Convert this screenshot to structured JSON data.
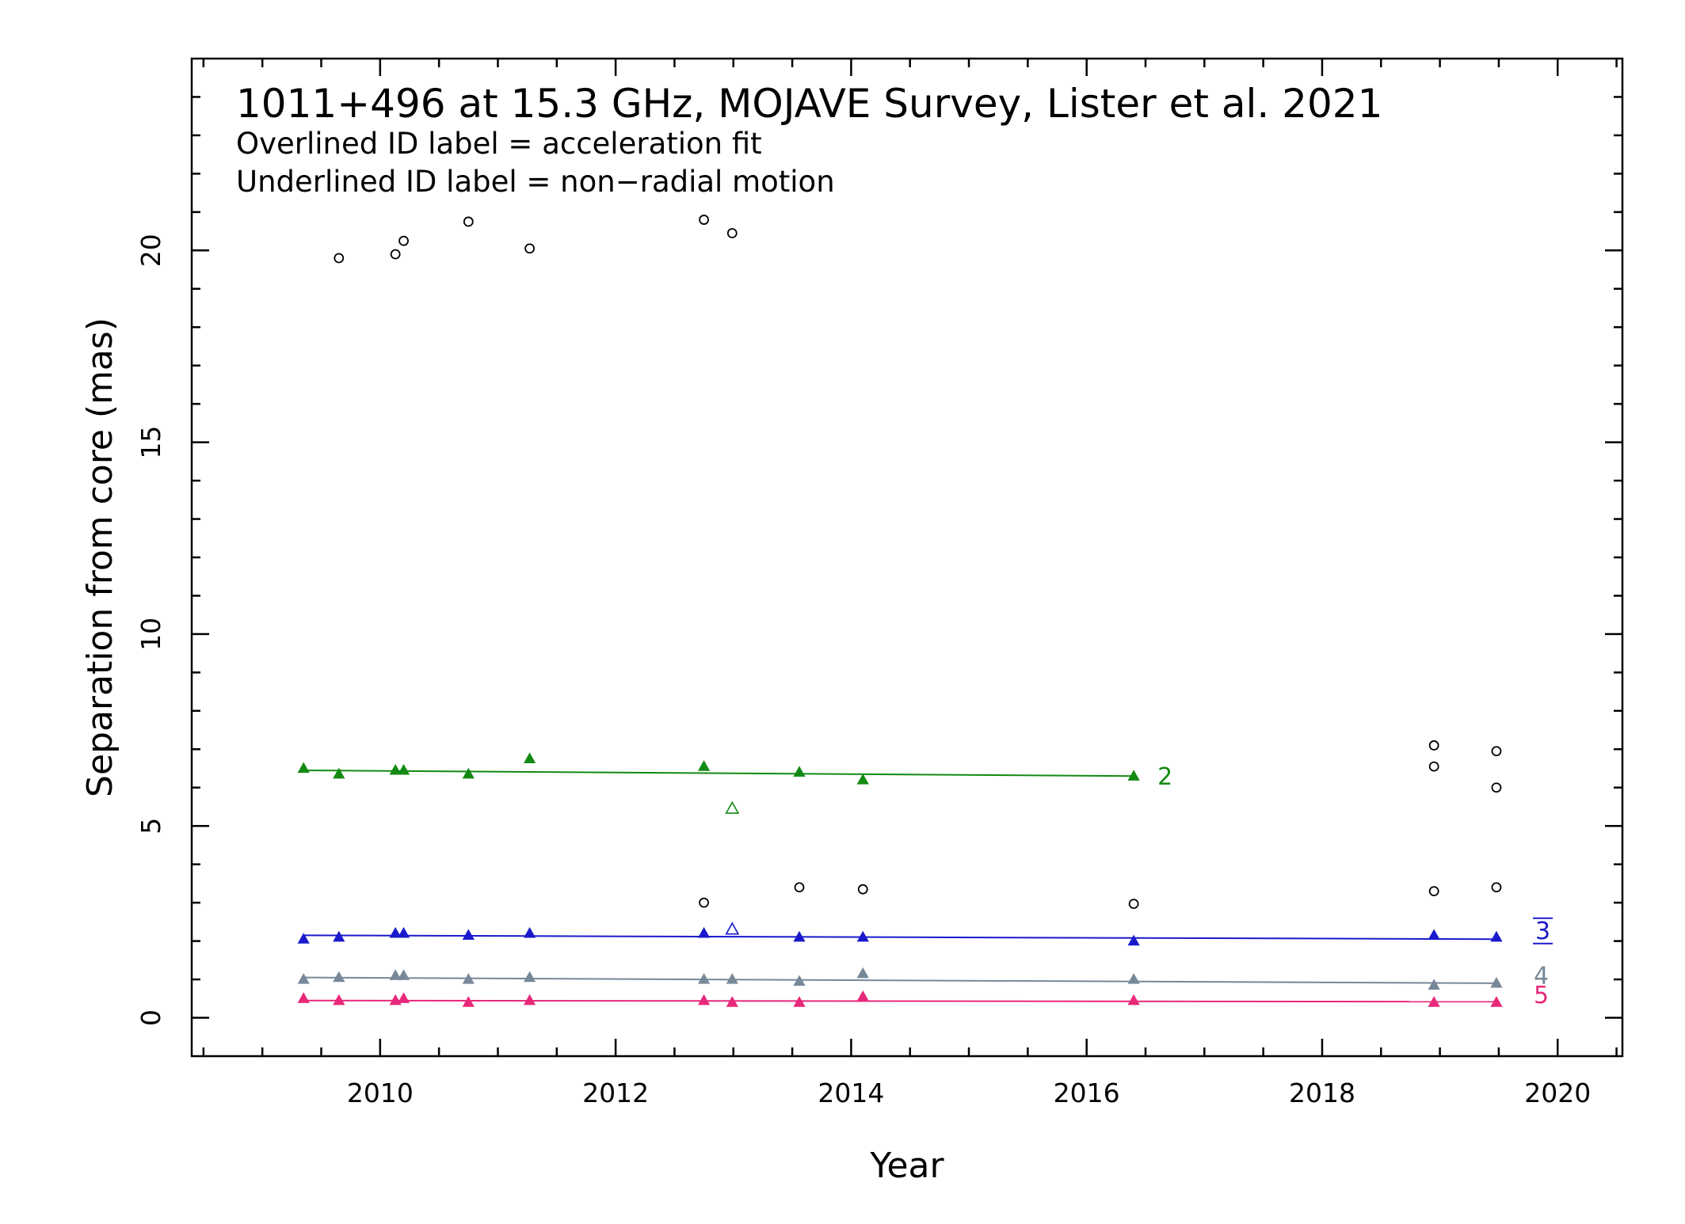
{
  "chart_data": {
    "type": "scatter",
    "title": "1011+496 at 15.3 GHz, MOJAVE Survey, Lister et al. 2021",
    "notes": [
      "Overlined ID label = acceleration fit",
      "Underlined ID label = non−radial motion"
    ],
    "xlabel": "Year",
    "ylabel": "Separation from core (mas)",
    "xlim": [
      2008.4,
      2020.55
    ],
    "ylim": [
      -1.0,
      25.0
    ],
    "xticks": [
      2010,
      2012,
      2014,
      2016,
      2018,
      2020
    ],
    "xtick_labels": [
      "2010",
      "2012",
      "2014",
      "2016",
      "2018",
      "2020"
    ],
    "yticks": [
      0,
      5,
      10,
      15,
      20
    ],
    "ytick_labels": [
      "0",
      "5",
      "10",
      "15",
      "20"
    ],
    "grid": false,
    "legend": "none",
    "other_points": [
      [
        2009.65,
        19.8
      ],
      [
        2010.13,
        19.9
      ],
      [
        2010.2,
        20.25
      ],
      [
        2010.75,
        20.75
      ],
      [
        2011.27,
        20.05
      ],
      [
        2012.75,
        20.8
      ],
      [
        2012.99,
        20.45
      ],
      [
        2012.75,
        3.0
      ],
      [
        2013.56,
        3.4
      ],
      [
        2014.1,
        3.35
      ],
      [
        2016.4,
        2.97
      ],
      [
        2018.95,
        7.1
      ],
      [
        2018.95,
        6.55
      ],
      [
        2018.95,
        3.3
      ],
      [
        2019.48,
        6.95
      ],
      [
        2019.48,
        6.0
      ],
      [
        2019.48,
        3.4
      ]
    ],
    "series": [
      {
        "name": "2",
        "color": "#138a13",
        "label_style": "plain",
        "points": [
          [
            2009.35,
            6.5
          ],
          [
            2009.65,
            6.35
          ],
          [
            2010.13,
            6.45
          ],
          [
            2010.2,
            6.45
          ],
          [
            2010.75,
            6.35
          ],
          [
            2011.27,
            6.75
          ],
          [
            2012.75,
            6.55
          ],
          [
            2013.56,
            6.4
          ],
          [
            2014.1,
            6.2
          ],
          [
            2016.4,
            6.3
          ]
        ],
        "excluded_points": [
          [
            2012.99,
            5.45
          ]
        ],
        "fit": [
          [
            2009.35,
            6.45
          ],
          [
            2016.4,
            6.3
          ]
        ]
      },
      {
        "name": "3",
        "color": "#1a1acc",
        "label_style": "overline-underline",
        "points": [
          [
            2009.35,
            2.05
          ],
          [
            2009.65,
            2.1
          ],
          [
            2010.13,
            2.2
          ],
          [
            2010.2,
            2.2
          ],
          [
            2010.75,
            2.15
          ],
          [
            2011.27,
            2.2
          ],
          [
            2012.75,
            2.2
          ],
          [
            2013.56,
            2.1
          ],
          [
            2014.1,
            2.1
          ],
          [
            2016.4,
            2.0
          ],
          [
            2018.95,
            2.15
          ],
          [
            2019.48,
            2.1
          ]
        ],
        "excluded_points": [
          [
            2012.99,
            2.3
          ]
        ],
        "fit": [
          [
            2009.35,
            2.15
          ],
          [
            2019.48,
            2.05
          ]
        ]
      },
      {
        "name": "4",
        "color": "#778899",
        "label_style": "plain",
        "points": [
          [
            2009.35,
            1.0
          ],
          [
            2009.65,
            1.05
          ],
          [
            2010.13,
            1.1
          ],
          [
            2010.2,
            1.1
          ],
          [
            2010.75,
            1.0
          ],
          [
            2011.27,
            1.05
          ],
          [
            2012.75,
            1.0
          ],
          [
            2012.99,
            1.0
          ],
          [
            2013.56,
            0.95
          ],
          [
            2014.1,
            1.15
          ],
          [
            2016.4,
            1.0
          ],
          [
            2018.95,
            0.85
          ],
          [
            2019.48,
            0.9
          ]
        ],
        "excluded_points": [],
        "fit": [
          [
            2009.35,
            1.05
          ],
          [
            2019.48,
            0.9
          ]
        ]
      },
      {
        "name": "5",
        "color": "#e8287a",
        "label_style": "plain",
        "points": [
          [
            2009.35,
            0.5
          ],
          [
            2009.65,
            0.45
          ],
          [
            2010.13,
            0.45
          ],
          [
            2010.2,
            0.5
          ],
          [
            2010.75,
            0.4
          ],
          [
            2011.27,
            0.45
          ],
          [
            2012.75,
            0.45
          ],
          [
            2012.99,
            0.4
          ],
          [
            2013.56,
            0.4
          ],
          [
            2014.1,
            0.55
          ],
          [
            2016.4,
            0.45
          ],
          [
            2018.95,
            0.4
          ],
          [
            2019.48,
            0.4
          ]
        ],
        "excluded_points": [],
        "fit": [
          [
            2009.35,
            0.45
          ],
          [
            2019.48,
            0.42
          ]
        ]
      }
    ]
  }
}
